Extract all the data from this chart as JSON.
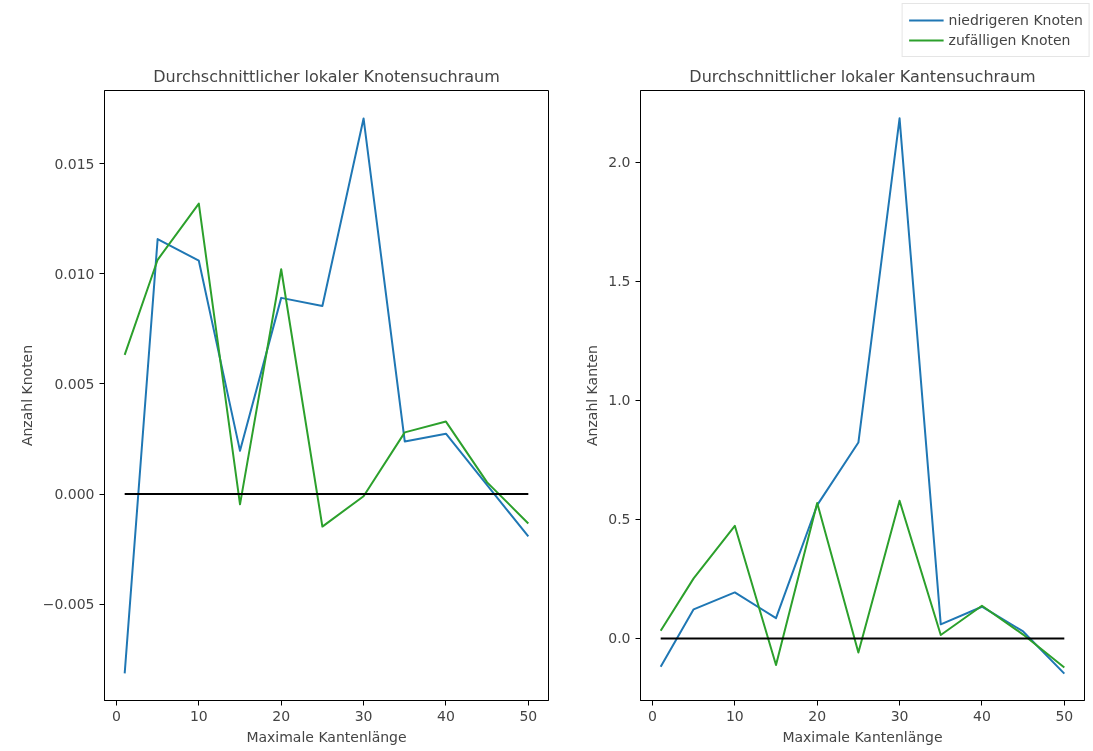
{
  "chart_data": [
    {
      "type": "line",
      "title": "Durchschnittlicher lokaler Knotensuchraum",
      "xlabel": "Maximale Kantenlänge",
      "ylabel": "Anzahl Knoten",
      "x": [
        1,
        5,
        10,
        15,
        20,
        25,
        30,
        35,
        40,
        45,
        50
      ],
      "series": [
        {
          "color": "#1f77b4",
          "values": [
            -0.00815,
            0.01158,
            0.0106,
            0.00196,
            0.00891,
            0.00854,
            0.01706,
            0.00239,
            0.00274,
            0.0004,
            -0.00193
          ]
        },
        {
          "color": "#2ca02c",
          "values": [
            0.00632,
            0.01064,
            0.01319,
            -0.00047,
            0.01021,
            -0.00148,
            -0.0001,
            0.0028,
            0.00329,
            0.00053,
            -0.00134
          ]
        },
        {
          "color": "#000000",
          "values": [
            0,
            0,
            0,
            0,
            0,
            0,
            0,
            0,
            0,
            0,
            0
          ]
        }
      ],
      "xlim": [
        -1.45,
        52.45
      ],
      "xticks": [
        0,
        10,
        20,
        30,
        40,
        50
      ],
      "ylim": [
        -0.00938,
        0.01833
      ],
      "yticks": [
        {
          "value": -0.005,
          "label": "−0.005"
        },
        {
          "value": 0,
          "label": "0.000"
        },
        {
          "value": 0.005,
          "label": "0.005"
        },
        {
          "value": 0.01,
          "label": "0.010"
        },
        {
          "value": 0.015,
          "label": "0.015"
        }
      ],
      "grid": false
    },
    {
      "type": "line",
      "title": "Durchschnittlicher lokaler Kantensuchraum",
      "xlabel": "Maximale Kantenlänge",
      "ylabel": "Anzahl Kanten",
      "x": [
        1,
        5,
        10,
        15,
        20,
        25,
        30,
        35,
        40,
        45,
        50
      ],
      "series": [
        {
          "name": "niedrigeren Knoten",
          "color": "#1f77b4",
          "values": [
            -0.119,
            0.122,
            0.193,
            0.085,
            0.56,
            0.823,
            2.185,
            0.059,
            0.133,
            0.029,
            -0.148
          ]
        },
        {
          "name": "zufälligen Knoten",
          "color": "#2ca02c",
          "values": [
            0.032,
            0.252,
            0.473,
            -0.112,
            0.569,
            -0.059,
            0.578,
            0.014,
            0.137,
            0.016,
            -0.122
          ]
        },
        {
          "color": "#000000",
          "values": [
            0,
            0,
            0,
            0,
            0,
            0,
            0,
            0,
            0,
            0,
            0
          ]
        }
      ],
      "xlim": [
        -1.45,
        52.45
      ],
      "xticks": [
        0,
        10,
        20,
        30,
        40,
        50
      ],
      "ylim": [
        -0.261,
        2.302
      ],
      "yticks": [
        {
          "value": 0,
          "label": "0.0"
        },
        {
          "value": 0.5,
          "label": "0.5"
        },
        {
          "value": 1,
          "label": "1.0"
        },
        {
          "value": 1.5,
          "label": "1.5"
        },
        {
          "value": 2,
          "label": "2.0"
        }
      ],
      "grid": false,
      "legend": "top right"
    }
  ]
}
